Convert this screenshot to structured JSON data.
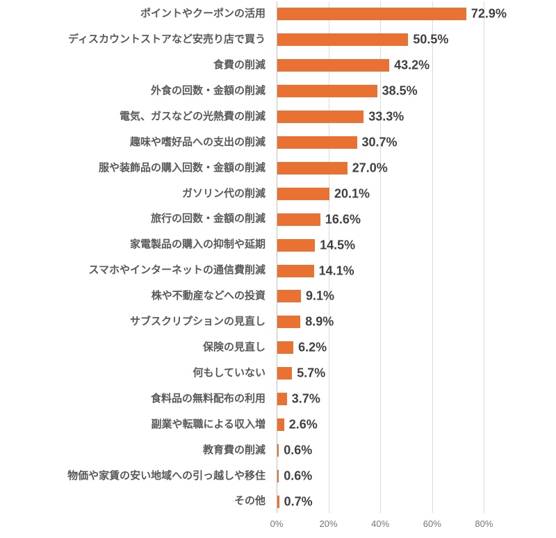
{
  "chart_data": {
    "type": "bar",
    "orientation": "horizontal",
    "title": "",
    "xlabel": "",
    "ylabel": "",
    "categories": [
      "ポイントやクーポンの活用",
      "ディスカウントストアなど安売り店で買う",
      "食費の削減",
      "外食の回数・金額の削減",
      "電気、ガスなどの光熱費の削減",
      "趣味や嗜好品への支出の削減",
      "服や装飾品の購入回数・金額の削減",
      "ガソリン代の削減",
      "旅行の回数・金額の削減",
      "家電製品の購入の抑制や延期",
      "スマホやインターネットの通信費削減",
      "株や不動産などへの投資",
      "サブスクリプションの見直し",
      "保険の見直し",
      "何もしていない",
      "食料品の無料配布の利用",
      "副業や転職による収入増",
      "教育費の削減",
      "物価や家賃の安い地域への引っ越しや移住",
      "その他"
    ],
    "values": [
      72.9,
      50.5,
      43.2,
      38.5,
      33.3,
      30.7,
      27.0,
      20.1,
      16.6,
      14.5,
      14.1,
      9.1,
      8.9,
      6.2,
      5.7,
      3.7,
      2.6,
      0.6,
      0.6,
      0.7
    ],
    "value_labels": [
      "72.9%",
      "50.5%",
      "43.2%",
      "38.5%",
      "33.3%",
      "30.7%",
      "27.0%",
      "20.1%",
      "16.6%",
      "14.5%",
      "14.1%",
      "9.1%",
      "8.9%",
      "6.2%",
      "5.7%",
      "3.7%",
      "2.6%",
      "0.6%",
      "0.6%",
      "0.7%"
    ],
    "xlim": [
      0,
      100
    ],
    "x_ticks": [
      "0%",
      "20%",
      "40%",
      "60%",
      "80%"
    ],
    "x_tick_positions": [
      0,
      20,
      40,
      60,
      80
    ],
    "grid": "vertical-only",
    "legend": "none",
    "bar_color": "#E97132",
    "label_color": "#595959",
    "value_color": "#404040",
    "tick_color": "#757575",
    "gridline_color": "#D9D9D9",
    "axis_line_color": "#BFBFBF"
  }
}
